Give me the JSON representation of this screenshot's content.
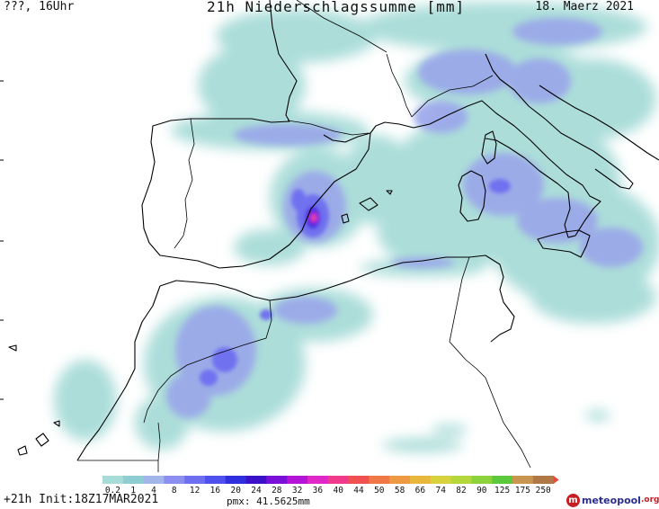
{
  "header": {
    "location_time": "???, 16Uhr",
    "title": "21h Niederschlagssumme [mm]",
    "date": "18. Maerz 2021"
  },
  "legend": {
    "ticks": [
      "0.2",
      "1",
      "4",
      "8",
      "12",
      "16",
      "20",
      "24",
      "28",
      "32",
      "36",
      "40",
      "44",
      "50",
      "58",
      "66",
      "74",
      "82",
      "90",
      "125",
      "175",
      "250"
    ],
    "colors": [
      "#a8dcd8",
      "#8ecdd2",
      "#a3b6ea",
      "#8c8ef0",
      "#6e6ef0",
      "#5050ee",
      "#2f2fe0",
      "#3a10c8",
      "#7a10d8",
      "#b414d8",
      "#e028c8",
      "#f23a8a",
      "#f05050",
      "#f07846",
      "#ee9a44",
      "#e8b83c",
      "#d8d23c",
      "#b4d83c",
      "#8cd23c",
      "#5cc83c",
      "#c89650",
      "#b07846"
    ],
    "unit": "mm"
  },
  "footer": {
    "run": "+21h  Init:18Z17MAR2021",
    "pmx": "pmx: 41.5625mm"
  },
  "brand": {
    "name": "meteopool",
    "tld": ".org"
  }
}
